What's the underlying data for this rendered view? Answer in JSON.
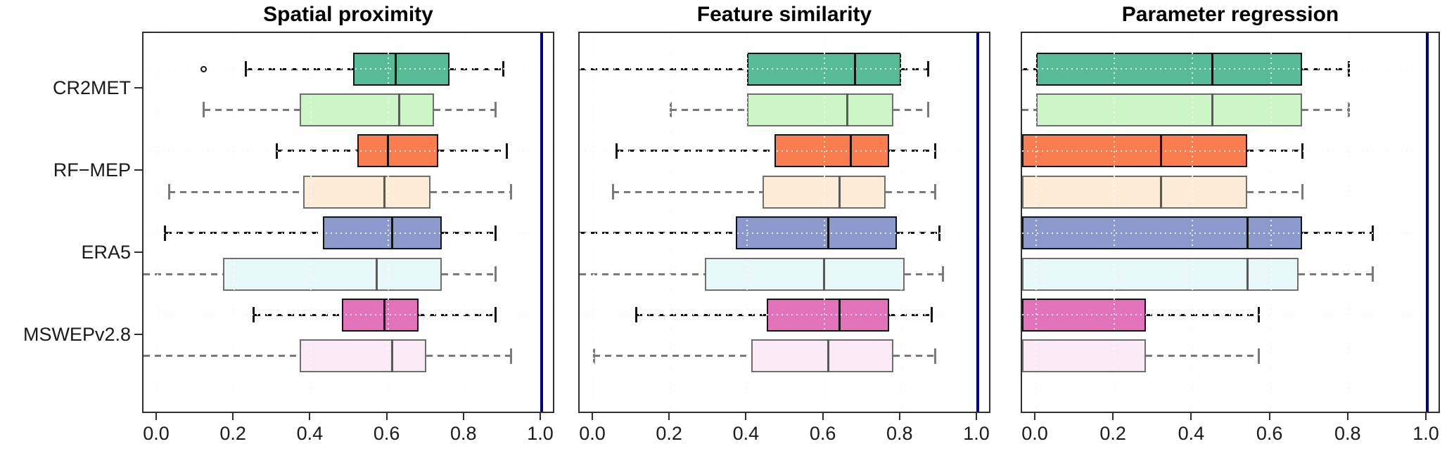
{
  "chart_data": {
    "type": "boxplot",
    "orientation": "horizontal",
    "xlim": [
      0.0,
      1.0
    ],
    "x_tick_labels": [
      "0.0",
      "0.2",
      "0.4",
      "0.6",
      "0.8",
      "1.0"
    ],
    "grid": "dotted",
    "reference_line_x": 1.0,
    "groups": [
      "CR2MET",
      "RF−MEP",
      "ERA5",
      "MSWEPv2.8"
    ],
    "palette": {
      "pairs": [
        {
          "name": "green",
          "dark": "#57bb98",
          "light": "#cdf6c6"
        },
        {
          "name": "orange",
          "dark": "#fa7d50",
          "light": "#fcebd7"
        },
        {
          "name": "blue",
          "dark": "#8a9acc",
          "light": "#e6f9f8"
        },
        {
          "name": "pink",
          "dark": "#e273ba",
          "light": "#fbe9f8"
        }
      ],
      "dark_stroke": "#141414",
      "light_stroke": "#6f6f6f",
      "reference_line": "#00008b",
      "grid_color": "#d9d9d9"
    },
    "panels": [
      {
        "title": "Spatial proximity",
        "boxes": [
          {
            "group": "CR2MET",
            "shade": "dark",
            "pair": 0,
            "whisker_low": 0.23,
            "q1": 0.51,
            "median": 0.62,
            "q3": 0.76,
            "whisker_high": 0.9,
            "outliers": [
              0.12
            ]
          },
          {
            "group": "CR2MET",
            "shade": "light",
            "pair": 0,
            "whisker_low": 0.12,
            "q1": 0.37,
            "median": 0.63,
            "q3": 0.72,
            "whisker_high": 0.88,
            "outliers": []
          },
          {
            "group": "RF−MEP",
            "shade": "dark",
            "pair": 1,
            "whisker_low": 0.31,
            "q1": 0.52,
            "median": 0.6,
            "q3": 0.73,
            "whisker_high": 0.91,
            "outliers": []
          },
          {
            "group": "RF−MEP",
            "shade": "light",
            "pair": 1,
            "whisker_low": 0.03,
            "q1": 0.38,
            "median": 0.59,
            "q3": 0.71,
            "whisker_high": 0.92,
            "outliers": []
          },
          {
            "group": "ERA5",
            "shade": "dark",
            "pair": 2,
            "whisker_low": 0.02,
            "q1": 0.43,
            "median": 0.61,
            "q3": 0.74,
            "whisker_high": 0.88,
            "outliers": []
          },
          {
            "group": "ERA5",
            "shade": "light",
            "pair": 2,
            "whisker_low": null,
            "q1": 0.17,
            "median": 0.57,
            "q3": 0.74,
            "whisker_high": 0.88,
            "outliers": []
          },
          {
            "group": "MSWEPv2.8",
            "shade": "dark",
            "pair": 3,
            "whisker_low": 0.25,
            "q1": 0.48,
            "median": 0.59,
            "q3": 0.68,
            "whisker_high": 0.88,
            "outliers": []
          },
          {
            "group": "MSWEPv2.8",
            "shade": "light",
            "pair": 3,
            "whisker_low": null,
            "q1": 0.37,
            "median": 0.61,
            "q3": 0.7,
            "whisker_high": 0.92,
            "outliers": []
          }
        ]
      },
      {
        "title": "Feature similarity",
        "boxes": [
          {
            "group": "CR2MET",
            "shade": "dark",
            "pair": 0,
            "whisker_low": null,
            "q1": 0.4,
            "median": 0.68,
            "q3": 0.8,
            "whisker_high": 0.87,
            "outliers": []
          },
          {
            "group": "CR2MET",
            "shade": "light",
            "pair": 0,
            "whisker_low": 0.2,
            "q1": 0.4,
            "median": 0.66,
            "q3": 0.78,
            "whisker_high": 0.87,
            "outliers": []
          },
          {
            "group": "RF−MEP",
            "shade": "dark",
            "pair": 1,
            "whisker_low": 0.06,
            "q1": 0.47,
            "median": 0.67,
            "q3": 0.77,
            "whisker_high": 0.89,
            "outliers": []
          },
          {
            "group": "RF−MEP",
            "shade": "light",
            "pair": 1,
            "whisker_low": 0.05,
            "q1": 0.44,
            "median": 0.64,
            "q3": 0.76,
            "whisker_high": 0.89,
            "outliers": []
          },
          {
            "group": "ERA5",
            "shade": "dark",
            "pair": 2,
            "whisker_low": null,
            "q1": 0.37,
            "median": 0.61,
            "q3": 0.79,
            "whisker_high": 0.9,
            "outliers": []
          },
          {
            "group": "ERA5",
            "shade": "light",
            "pair": 2,
            "whisker_low": null,
            "q1": 0.29,
            "median": 0.6,
            "q3": 0.81,
            "whisker_high": 0.91,
            "outliers": []
          },
          {
            "group": "MSWEPv2.8",
            "shade": "dark",
            "pair": 3,
            "whisker_low": 0.11,
            "q1": 0.45,
            "median": 0.64,
            "q3": 0.77,
            "whisker_high": 0.88,
            "outliers": []
          },
          {
            "group": "MSWEPv2.8",
            "shade": "light",
            "pair": 3,
            "whisker_low": 0.0,
            "q1": 0.41,
            "median": 0.61,
            "q3": 0.78,
            "whisker_high": 0.89,
            "outliers": []
          }
        ]
      },
      {
        "title": "Parameter regression",
        "boxes": [
          {
            "group": "CR2MET",
            "shade": "dark",
            "pair": 0,
            "whisker_low": null,
            "q1": 0.0,
            "median": 0.45,
            "q3": 0.68,
            "whisker_high": 0.8,
            "outliers": []
          },
          {
            "group": "CR2MET",
            "shade": "light",
            "pair": 0,
            "whisker_low": null,
            "q1": 0.0,
            "median": 0.45,
            "q3": 0.68,
            "whisker_high": 0.8,
            "outliers": []
          },
          {
            "group": "RF−MEP",
            "shade": "dark",
            "pair": 1,
            "whisker_low": null,
            "q1": null,
            "median": 0.32,
            "q3": 0.54,
            "whisker_high": 0.68,
            "outliers": []
          },
          {
            "group": "RF−MEP",
            "shade": "light",
            "pair": 1,
            "whisker_low": null,
            "q1": null,
            "median": 0.32,
            "q3": 0.54,
            "whisker_high": 0.68,
            "outliers": []
          },
          {
            "group": "ERA5",
            "shade": "dark",
            "pair": 2,
            "whisker_low": null,
            "q1": null,
            "median": 0.54,
            "q3": 0.68,
            "whisker_high": 0.86,
            "outliers": []
          },
          {
            "group": "ERA5",
            "shade": "light",
            "pair": 2,
            "whisker_low": null,
            "q1": null,
            "median": 0.54,
            "q3": 0.67,
            "whisker_high": 0.86,
            "outliers": []
          },
          {
            "group": "MSWEPv2.8",
            "shade": "dark",
            "pair": 3,
            "whisker_low": null,
            "q1": null,
            "median": null,
            "q3": 0.28,
            "whisker_high": 0.57,
            "outliers": []
          },
          {
            "group": "MSWEPv2.8",
            "shade": "light",
            "pair": 3,
            "whisker_low": null,
            "q1": null,
            "median": null,
            "q3": 0.28,
            "whisker_high": 0.57,
            "outliers": []
          }
        ]
      }
    ]
  }
}
